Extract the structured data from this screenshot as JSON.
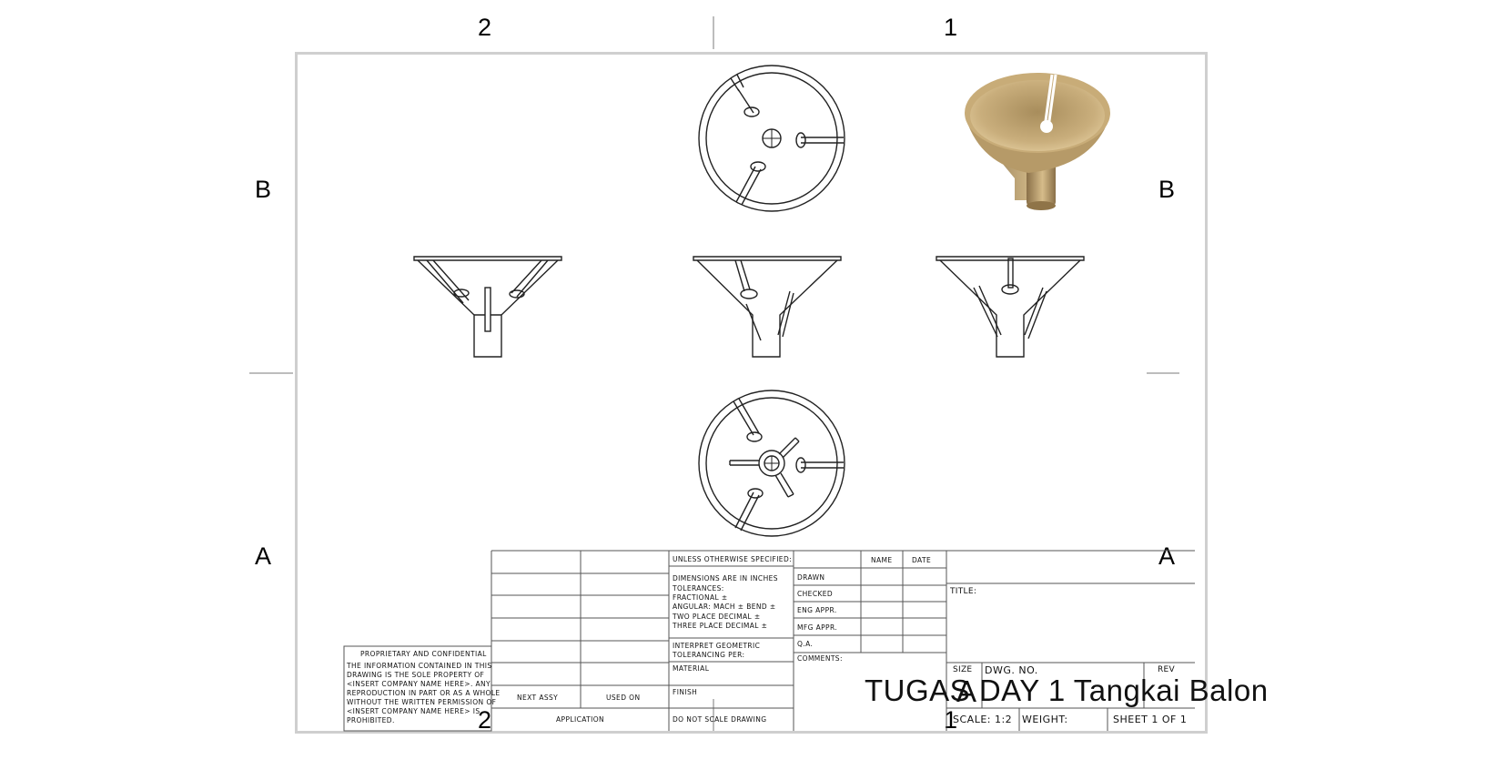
{
  "zones": {
    "top": [
      "2",
      "1"
    ],
    "bottom": [
      "2",
      "1"
    ],
    "left": [
      "B",
      "A"
    ],
    "right": [
      "B",
      "A"
    ]
  },
  "title_block": {
    "proprietary_heading": "PROPRIETARY AND CONFIDENTIAL",
    "proprietary_lines": [
      "THE INFORMATION CONTAINED IN THIS",
      "DRAWING IS THE SOLE PROPERTY OF",
      "<INSERT COMPANY NAME HERE>. ANY",
      "REPRODUCTION IN PART OR AS A WHOLE",
      "WITHOUT THE WRITTEN PERMISSION OF",
      "<INSERT COMPANY NAME HERE> IS",
      "PROHIBITED."
    ],
    "next_assy": "NEXT ASSY",
    "used_on": "USED ON",
    "application": "APPLICATION",
    "unless": "UNLESS OTHERWISE SPECIFIED:",
    "dimensions": "DIMENSIONS ARE IN INCHES",
    "tolerances": "TOLERANCES:",
    "fractional": "FRACTIONAL ±",
    "angular": "ANGULAR: MACH ±    BEND  ±",
    "two_place": "TWO PLACE DECIMAL    ±",
    "three_place": "THREE PLACE DECIMAL   ±",
    "interpret_1": "INTERPRET GEOMETRIC",
    "interpret_2": "TOLERANCING PER:",
    "material": "MATERIAL",
    "finish": "FINISH",
    "do_not_scale": "DO NOT SCALE DRAWING",
    "name_header": "NAME",
    "date_header": "DATE",
    "rows": [
      "DRAWN",
      "CHECKED",
      "ENG APPR.",
      "MFG APPR.",
      "Q.A."
    ],
    "comments": "COMMENTS:",
    "title_label": "TITLE:",
    "size_label": "SIZE",
    "size_value": "A",
    "dwg_label": "DWG.  NO.",
    "rev_label": "REV",
    "dwg_value": "TUGAS DAY 1 Tangkai Balon",
    "scale": "SCALE: 1:2",
    "weight": "WEIGHT:",
    "sheet": "SHEET 1 OF 1"
  },
  "colors": {
    "frame": "#cfcfcf",
    "line": "#222222",
    "render_light": "#d4bb8a",
    "render_dark": "#8f7448"
  }
}
